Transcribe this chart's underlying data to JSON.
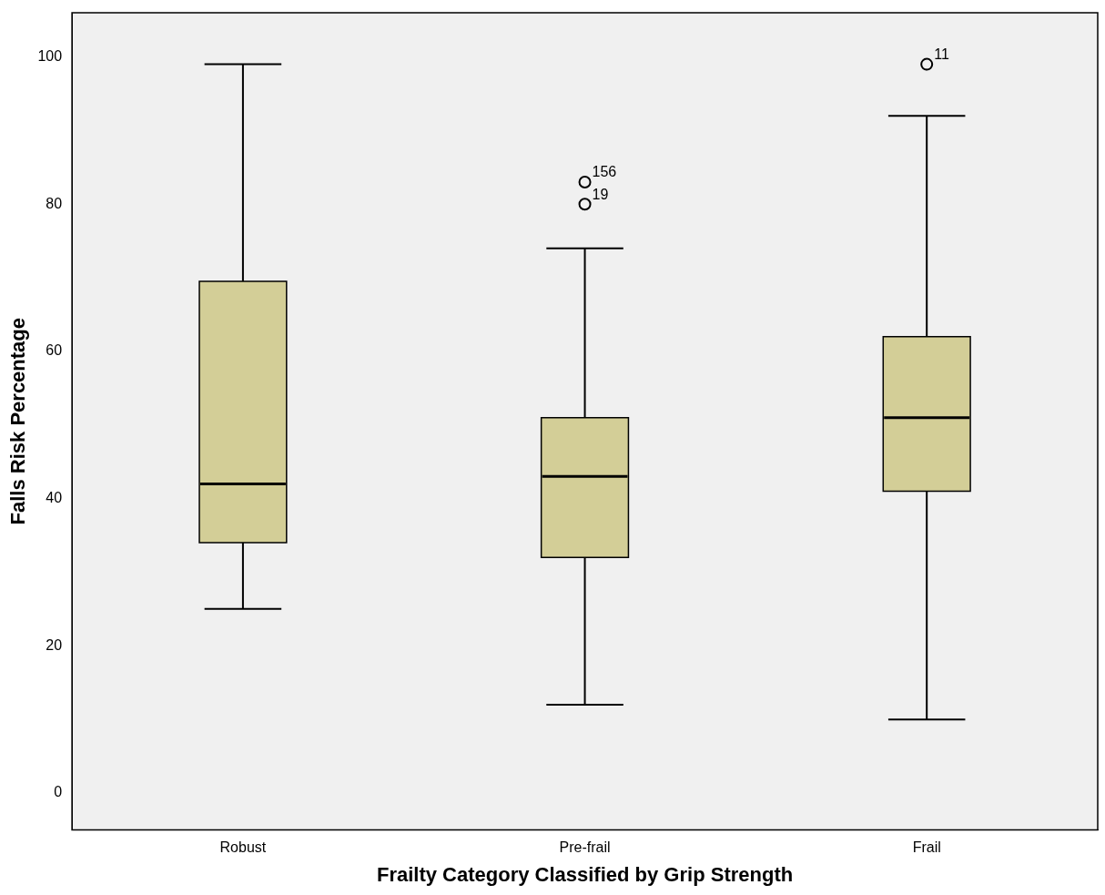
{
  "chart_data": {
    "type": "box",
    "xlabel": "Frailty Category Classified by Grip Strength",
    "ylabel": "Falls Risk Percentage",
    "categories": [
      "Robust",
      "Pre-frail",
      "Frail"
    ],
    "color": "#d3ce97",
    "boxes": [
      {
        "low": 25,
        "q1": 34,
        "median": 42,
        "q3": 69.5,
        "high": 99
      },
      {
        "low": 12,
        "q1": 32,
        "median": 43,
        "q3": 51,
        "high": 74,
        "outliers": [
          83,
          80
        ]
      },
      {
        "low": 10,
        "q1": 41,
        "median": 51,
        "q3": 62,
        "high": 92,
        "outliers": [
          99
        ]
      }
    ],
    "ylim": [
      -5,
      106
    ],
    "yticks": [
      0,
      20,
      40,
      60,
      80,
      100
    ],
    "grid": false,
    "legend": false,
    "annotations": [
      "156",
      "19",
      "11"
    ]
  }
}
